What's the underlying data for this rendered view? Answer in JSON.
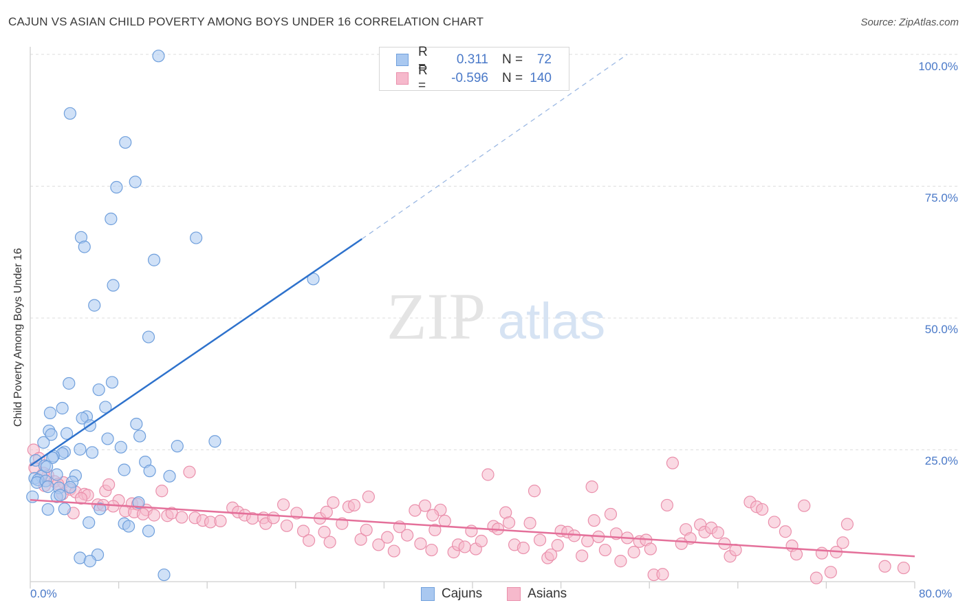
{
  "title": "CAJUN VS ASIAN CHILD POVERTY AMONG BOYS UNDER 16 CORRELATION CHART",
  "source": "Source: ZipAtlas.com",
  "watermark": {
    "zip": "ZIP",
    "atlas": "atlas"
  },
  "colors": {
    "cajun_fill": "#a9c8f0",
    "cajun_stroke": "#6f9fdc",
    "cajun_line": "#2e72cc",
    "asian_fill": "#f6b9cc",
    "asian_stroke": "#ea8fab",
    "asian_line": "#e4709a",
    "axis_text": "#4a79c8",
    "grid": "#dddddd"
  },
  "stats": {
    "cajun": {
      "r_label": "R =",
      "r_value": "0.311",
      "n_label": "N =",
      "n_value": "72"
    },
    "asian": {
      "r_label": "R =",
      "r_value": "-0.596",
      "n_label": "N =",
      "n_value": "140"
    }
  },
  "legend": {
    "cajun": "Cajuns",
    "asian": "Asians"
  },
  "chart_data": {
    "type": "scatter",
    "title": "CAJUN VS ASIAN CHILD POVERTY AMONG BOYS UNDER 16 CORRELATION CHART",
    "xlabel": "",
    "ylabel": "Child Poverty Among Boys Under 16",
    "xlim": [
      0,
      80
    ],
    "ylim": [
      0,
      100
    ],
    "x_tick_labels": [
      "0.0%",
      "80.0%"
    ],
    "y_tick_labels": [
      "100.0%",
      "75.0%",
      "50.0%",
      "25.0%"
    ],
    "y_ticks": [
      100,
      75,
      50,
      25
    ],
    "legend_position": "bottom-center",
    "series": [
      {
        "name": "Cajuns",
        "r": 0.311,
        "n": 72,
        "trend_solid": [
          [
            0.0,
            22.0
          ],
          [
            30.0,
            65.0
          ]
        ],
        "trend_dashed": [
          [
            30.0,
            65.0
          ],
          [
            54.0,
            100.0
          ]
        ],
        "points": [
          [
            11.6,
            99.7
          ],
          [
            3.6,
            88.8
          ],
          [
            8.6,
            83.3
          ],
          [
            9.5,
            75.8
          ],
          [
            7.8,
            74.8
          ],
          [
            7.3,
            68.8
          ],
          [
            4.6,
            65.3
          ],
          [
            15.0,
            65.2
          ],
          [
            4.9,
            63.5
          ],
          [
            11.2,
            61.0
          ],
          [
            25.6,
            57.4
          ],
          [
            7.5,
            56.2
          ],
          [
            5.8,
            52.4
          ],
          [
            10.7,
            46.4
          ],
          [
            3.5,
            37.6
          ],
          [
            7.4,
            37.8
          ],
          [
            6.2,
            36.4
          ],
          [
            2.9,
            32.9
          ],
          [
            6.8,
            33.1
          ],
          [
            1.8,
            32.0
          ],
          [
            5.1,
            31.3
          ],
          [
            4.7,
            31.0
          ],
          [
            5.4,
            29.6
          ],
          [
            9.6,
            29.9
          ],
          [
            1.7,
            28.6
          ],
          [
            3.3,
            28.1
          ],
          [
            1.9,
            27.9
          ],
          [
            9.9,
            27.6
          ],
          [
            7.0,
            27.1
          ],
          [
            16.7,
            26.6
          ],
          [
            1.2,
            26.4
          ],
          [
            8.2,
            25.5
          ],
          [
            13.3,
            25.7
          ],
          [
            4.5,
            25.1
          ],
          [
            3.1,
            24.6
          ],
          [
            2.9,
            24.3
          ],
          [
            5.6,
            24.5
          ],
          [
            2.1,
            23.8
          ],
          [
            2.0,
            23.5
          ],
          [
            0.5,
            23.0
          ],
          [
            10.4,
            22.7
          ],
          [
            1.3,
            22.0
          ],
          [
            10.8,
            21.0
          ],
          [
            8.5,
            21.2
          ],
          [
            12.6,
            20.0
          ],
          [
            1.0,
            20.0
          ],
          [
            0.4,
            19.6
          ],
          [
            0.7,
            19.3
          ],
          [
            2.4,
            20.3
          ],
          [
            4.1,
            20.1
          ],
          [
            0.6,
            18.8
          ],
          [
            1.4,
            19.1
          ],
          [
            3.8,
            18.9
          ],
          [
            1.6,
            18.0
          ],
          [
            2.6,
            17.8
          ],
          [
            3.6,
            17.9
          ],
          [
            0.2,
            16.1
          ],
          [
            2.4,
            16.1
          ],
          [
            2.7,
            16.4
          ],
          [
            9.8,
            15.0
          ],
          [
            1.6,
            13.7
          ],
          [
            3.1,
            13.8
          ],
          [
            6.3,
            13.8
          ],
          [
            5.3,
            11.2
          ],
          [
            8.5,
            11.0
          ],
          [
            8.9,
            10.5
          ],
          [
            10.7,
            9.6
          ],
          [
            4.5,
            4.5
          ],
          [
            6.1,
            5.1
          ],
          [
            5.4,
            3.9
          ],
          [
            12.1,
            1.3
          ],
          [
            1.5,
            21.8
          ]
        ]
      },
      {
        "name": "Asians",
        "r": -0.596,
        "n": 140,
        "trend_solid": [
          [
            0.0,
            15.5
          ],
          [
            80.0,
            4.8
          ]
        ],
        "points": [
          [
            0.3,
            25.0
          ],
          [
            0.8,
            23.4
          ],
          [
            1.6,
            20.2
          ],
          [
            1.2,
            20.6
          ],
          [
            2.2,
            19.0
          ],
          [
            3.0,
            18.8
          ],
          [
            2.5,
            18.5
          ],
          [
            3.6,
            17.5
          ],
          [
            4.1,
            17.0
          ],
          [
            4.9,
            16.6
          ],
          [
            5.2,
            16.4
          ],
          [
            6.8,
            17.2
          ],
          [
            7.1,
            18.4
          ],
          [
            8.0,
            15.4
          ],
          [
            9.2,
            14.8
          ],
          [
            6.1,
            14.6
          ],
          [
            7.5,
            14.3
          ],
          [
            10.5,
            13.6
          ],
          [
            11.9,
            17.2
          ],
          [
            14.4,
            20.8
          ],
          [
            8.6,
            13.4
          ],
          [
            9.4,
            13.2
          ],
          [
            10.2,
            12.8
          ],
          [
            11.2,
            12.6
          ],
          [
            12.4,
            12.5
          ],
          [
            12.8,
            13.0
          ],
          [
            13.7,
            12.2
          ],
          [
            14.9,
            12.1
          ],
          [
            15.6,
            11.6
          ],
          [
            16.3,
            11.3
          ],
          [
            17.2,
            11.5
          ],
          [
            18.3,
            14.0
          ],
          [
            18.8,
            13.2
          ],
          [
            19.4,
            12.6
          ],
          [
            20.1,
            12.0
          ],
          [
            21.1,
            12.1
          ],
          [
            21.3,
            11.0
          ],
          [
            22.0,
            12.1
          ],
          [
            22.9,
            14.6
          ],
          [
            23.2,
            10.6
          ],
          [
            24.1,
            13.0
          ],
          [
            24.7,
            9.6
          ],
          [
            25.2,
            7.8
          ],
          [
            26.2,
            12.0
          ],
          [
            26.6,
            9.4
          ],
          [
            27.1,
            7.5
          ],
          [
            27.4,
            15.0
          ],
          [
            28.2,
            11.0
          ],
          [
            28.8,
            14.2
          ],
          [
            29.3,
            14.5
          ],
          [
            29.9,
            8.0
          ],
          [
            30.4,
            9.8
          ],
          [
            30.6,
            16.1
          ],
          [
            31.5,
            7.0
          ],
          [
            32.3,
            8.4
          ],
          [
            32.9,
            5.8
          ],
          [
            33.4,
            10.4
          ],
          [
            34.1,
            8.8
          ],
          [
            34.8,
            13.5
          ],
          [
            35.3,
            7.2
          ],
          [
            35.7,
            14.4
          ],
          [
            36.3,
            6.0
          ],
          [
            36.6,
            9.8
          ],
          [
            37.1,
            13.6
          ],
          [
            37.5,
            11.5
          ],
          [
            38.3,
            5.6
          ],
          [
            38.7,
            7.0
          ],
          [
            39.3,
            6.6
          ],
          [
            39.9,
            9.6
          ],
          [
            40.3,
            6.2
          ],
          [
            40.8,
            7.7
          ],
          [
            41.4,
            20.3
          ],
          [
            41.9,
            10.5
          ],
          [
            42.3,
            10.0
          ],
          [
            43.0,
            13.1
          ],
          [
            43.3,
            11.2
          ],
          [
            43.8,
            7.0
          ],
          [
            44.6,
            6.4
          ],
          [
            45.2,
            11.1
          ],
          [
            45.6,
            17.2
          ],
          [
            46.1,
            7.9
          ],
          [
            46.8,
            4.5
          ],
          [
            47.1,
            5.1
          ],
          [
            47.7,
            6.9
          ],
          [
            48.0,
            9.6
          ],
          [
            48.6,
            9.4
          ],
          [
            49.2,
            8.7
          ],
          [
            49.9,
            4.9
          ],
          [
            50.4,
            7.7
          ],
          [
            50.8,
            18.0
          ],
          [
            51.4,
            8.5
          ],
          [
            52.0,
            6.0
          ],
          [
            52.5,
            12.8
          ],
          [
            53.0,
            9.1
          ],
          [
            53.4,
            3.9
          ],
          [
            54.0,
            8.3
          ],
          [
            54.6,
            5.6
          ],
          [
            55.1,
            7.6
          ],
          [
            55.7,
            7.9
          ],
          [
            56.1,
            6.2
          ],
          [
            56.4,
            1.3
          ],
          [
            57.2,
            1.4
          ],
          [
            57.6,
            14.5
          ],
          [
            58.1,
            22.5
          ],
          [
            59.3,
            9.9
          ],
          [
            59.7,
            8.2
          ],
          [
            60.6,
            10.8
          ],
          [
            61.0,
            9.4
          ],
          [
            61.6,
            10.2
          ],
          [
            62.2,
            9.3
          ],
          [
            62.8,
            7.2
          ],
          [
            63.3,
            4.8
          ],
          [
            63.8,
            6.0
          ],
          [
            65.1,
            15.1
          ],
          [
            65.7,
            14.2
          ],
          [
            66.2,
            13.7
          ],
          [
            67.3,
            11.3
          ],
          [
            68.3,
            9.5
          ],
          [
            68.9,
            6.8
          ],
          [
            70.0,
            14.4
          ],
          [
            71.1,
            0.7
          ],
          [
            71.6,
            5.4
          ],
          [
            72.4,
            1.8
          ],
          [
            72.9,
            5.6
          ],
          [
            73.5,
            7.4
          ],
          [
            73.9,
            10.9
          ],
          [
            77.3,
            2.9
          ],
          [
            79.0,
            2.6
          ],
          [
            0.4,
            21.6
          ],
          [
            1.3,
            18.2
          ],
          [
            4.6,
            15.8
          ],
          [
            2.9,
            16.6
          ],
          [
            6.6,
            14.5
          ],
          [
            3.9,
            13.0
          ],
          [
            9.7,
            14.7
          ],
          [
            26.8,
            13.2
          ],
          [
            36.4,
            12.6
          ],
          [
            51.0,
            11.6
          ],
          [
            58.9,
            7.2
          ],
          [
            69.3,
            5.2
          ]
        ]
      }
    ]
  }
}
